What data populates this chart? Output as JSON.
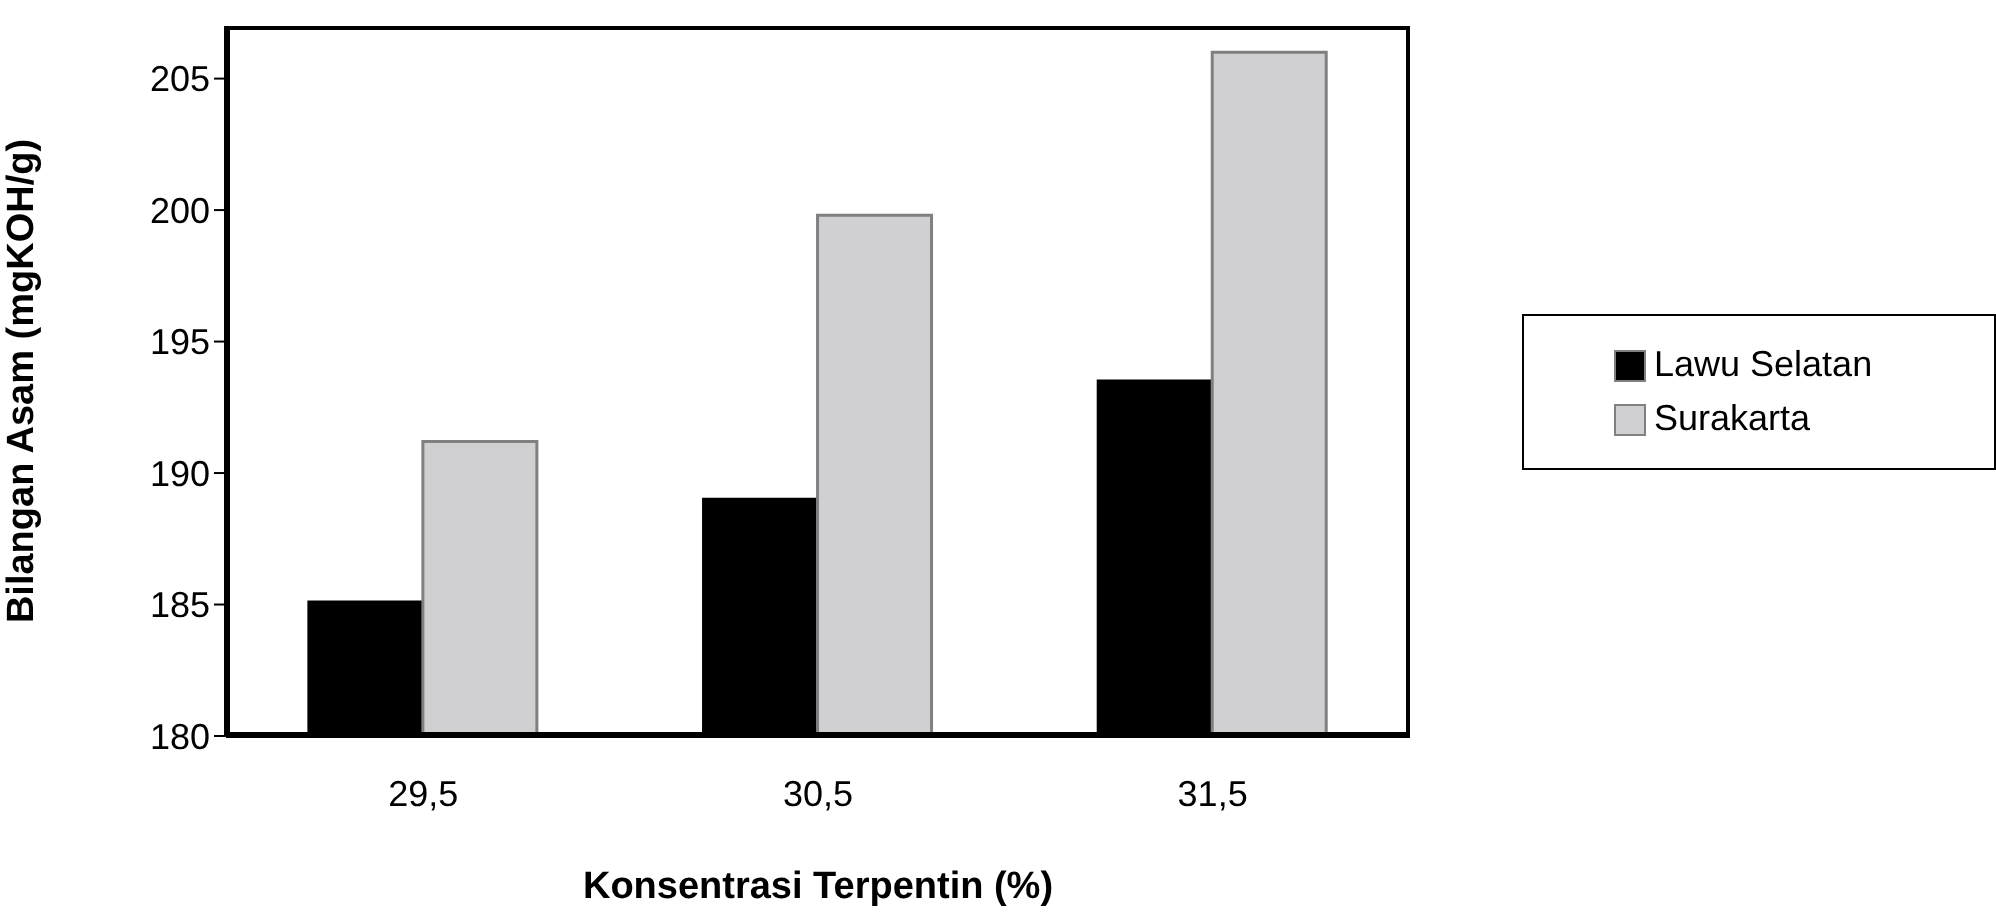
{
  "chart_data": {
    "type": "bar",
    "xlabel": "Konsentrasi Terpentin (%)",
    "ylabel": "Bilangan Asam (mgKOH/g)",
    "categories": [
      "29,5",
      "30,5",
      "31,5"
    ],
    "series": [
      {
        "name": "Lawu Selatan",
        "color": "#000000",
        "values": [
          185.1,
          189.0,
          193.5
        ]
      },
      {
        "name": "Surakarta",
        "color": "#d0cfd1",
        "values": [
          191.2,
          199.8,
          206.0
        ]
      }
    ],
    "ylim": [
      180,
      207
    ],
    "yticks": [
      180,
      185,
      190,
      195,
      200,
      205
    ],
    "grid": false,
    "legend": "right"
  }
}
